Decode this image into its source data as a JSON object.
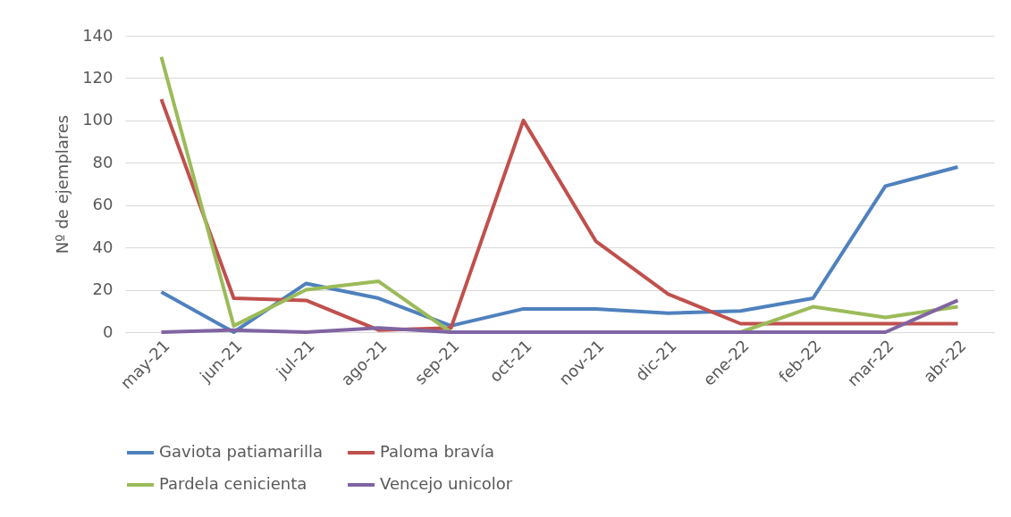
{
  "chart_data": {
    "type": "line",
    "ylabel": "Nº de ejemplares",
    "categories": [
      "may-21",
      "jun-21",
      "jul-21",
      "ago-21",
      "sep-21",
      "oct-21",
      "nov-21",
      "dic-21",
      "ene-22",
      "feb-22",
      "mar-22",
      "abr-22"
    ],
    "ylim": [
      0,
      140
    ],
    "yticks": [
      0,
      20,
      40,
      60,
      80,
      100,
      120,
      140
    ],
    "grid": "y",
    "legend": "bottom",
    "marker": "none",
    "line_style": "solid",
    "series": [
      {
        "name": "Gaviota patiamarilla",
        "color": "#4f81bd",
        "values": [
          19,
          0,
          23,
          16,
          3,
          11,
          11,
          9,
          10,
          16,
          69,
          78
        ]
      },
      {
        "name": "Paloma bravía",
        "color": "#c0504d",
        "values": [
          110,
          16,
          15,
          1,
          2,
          100,
          43,
          18,
          4,
          4,
          4,
          4
        ]
      },
      {
        "name": "Pardela cenicienta",
        "color": "#9bbb59",
        "values": [
          130,
          3,
          20,
          24,
          0,
          0,
          0,
          0,
          0,
          12,
          7,
          12
        ]
      },
      {
        "name": "Vencejo unicolor",
        "color": "#8064a2",
        "values": [
          0,
          1,
          0,
          2,
          0,
          0,
          0,
          0,
          0,
          0,
          0,
          15
        ]
      }
    ]
  }
}
